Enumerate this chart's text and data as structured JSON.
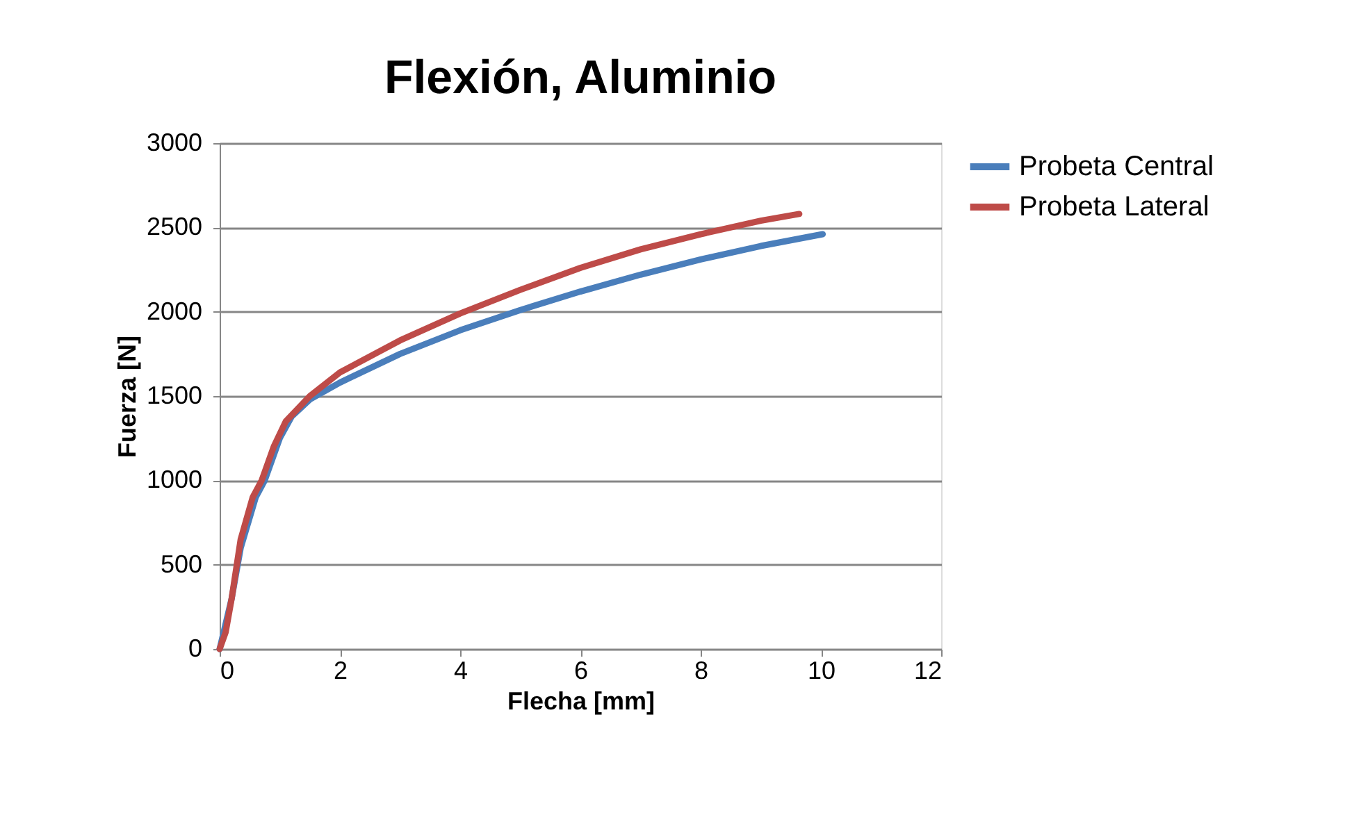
{
  "chart_data": {
    "type": "line",
    "title": "Flexión, Aluminio",
    "xlabel": "Flecha [mm]",
    "ylabel": "Fuerza [N]",
    "xlim": [
      0,
      12
    ],
    "xticks": [
      0,
      2,
      4,
      6,
      8,
      10,
      12
    ],
    "ylim": [
      0,
      3000
    ],
    "yticks": [
      0,
      500,
      1000,
      1500,
      2000,
      2500,
      3000
    ],
    "grid": "y",
    "legend": "right",
    "marker": "none",
    "line_style": "solid",
    "series": [
      {
        "name": "Probeta Central",
        "color": "#4a7ebb",
        "x": [
          0,
          0.2,
          0.35,
          0.6,
          0.75,
          1,
          1.2,
          1.5,
          2,
          3,
          4,
          5,
          6,
          7,
          8,
          9,
          10.03
        ],
        "values": [
          0,
          300,
          600,
          900,
          1000,
          1250,
          1380,
          1480,
          1580,
          1750,
          1890,
          2010,
          2120,
          2220,
          2310,
          2390,
          2460
        ]
      },
      {
        "name": "Probeta Lateral",
        "color": "#be4b48",
        "x": [
          0,
          0.1,
          0.2,
          0.35,
          0.55,
          0.7,
          0.9,
          1.1,
          1.5,
          2,
          3,
          4,
          5,
          6,
          7,
          8,
          9,
          9.64
        ],
        "values": [
          0,
          100,
          300,
          650,
          900,
          1000,
          1200,
          1350,
          1500,
          1640,
          1830,
          1990,
          2130,
          2260,
          2370,
          2460,
          2540,
          2580
        ]
      }
    ]
  }
}
